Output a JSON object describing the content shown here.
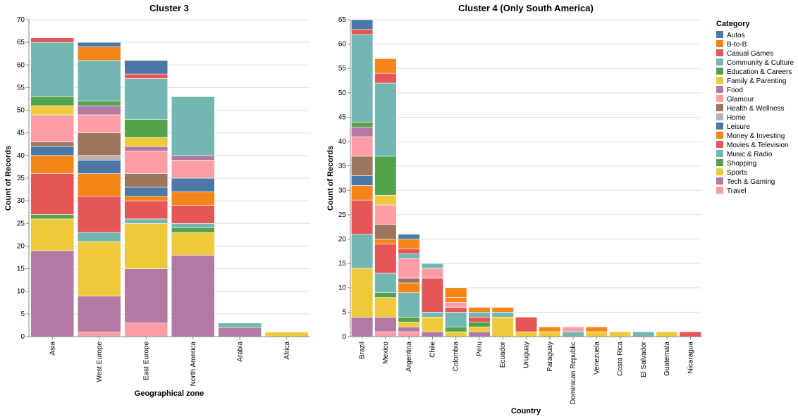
{
  "colors": {
    "Autos": "#4c78a8",
    "B-to-B": "#f58518",
    "Casual Games": "#e45756",
    "Community & Culture": "#72b7b2",
    "Education & Careers": "#54a24b",
    "Family & Parenting": "#eeca3b",
    "Food": "#b279a2",
    "Glamour": "#ff9da6",
    "Health & Wellness": "#9d755d",
    "Home": "#bab0ac",
    "Leisure": "#4c78a8",
    "Money & Investing": "#f58518",
    "Movies & Television": "#e45756",
    "Music & Radio": "#72b7b2",
    "Shopping": "#54a24b",
    "Sports": "#eeca3b",
    "Tech & Gaming": "#b279a2",
    "Travel": "#ff9da6"
  },
  "legend": {
    "title": "Category",
    "items": [
      "Autos",
      "B-to-B",
      "Casual Games",
      "Community & Culture",
      "Education & Careers",
      "Family & Parenting",
      "Food",
      "Glamour",
      "Health & Wellness",
      "Home",
      "Leisure",
      "Money & Investing",
      "Movies & Television",
      "Music & Radio",
      "Shopping",
      "Sports",
      "Tech & Gaming",
      "Travel"
    ]
  },
  "chart_data": [
    {
      "type": "bar",
      "stacked": true,
      "title": "Cluster 3",
      "xlabel": "Geographical zone",
      "ylabel": "Count of Records",
      "ylim": [
        0,
        70
      ],
      "yticks": [
        0,
        5,
        10,
        15,
        20,
        25,
        30,
        35,
        40,
        45,
        50,
        55,
        60,
        65,
        70
      ],
      "categories": [
        "Asia",
        "West Europe",
        "East Europe",
        "North America",
        "Arabia",
        "Africa"
      ],
      "stacks": [
        [
          [
            "Tech & Gaming",
            19
          ],
          [
            "Sports",
            7
          ],
          [
            "Shopping",
            1
          ],
          [
            "Movies & Television",
            9
          ],
          [
            "Money & Investing",
            4
          ],
          [
            "Leisure",
            2
          ],
          [
            "Health & Wellness",
            1
          ],
          [
            "Glamour",
            6
          ],
          [
            "Family & Parenting",
            2
          ],
          [
            "Education & Careers",
            2
          ],
          [
            "Community & Culture",
            12
          ],
          [
            "Casual Games",
            1
          ]
        ],
        [
          [
            "Travel",
            1
          ],
          [
            "Tech & Gaming",
            8
          ],
          [
            "Sports",
            12
          ],
          [
            "Music & Radio",
            2
          ],
          [
            "Movies & Television",
            8
          ],
          [
            "Money & Investing",
            5
          ],
          [
            "Leisure",
            3
          ],
          [
            "Home",
            1
          ],
          [
            "Health & Wellness",
            5
          ],
          [
            "Glamour",
            4
          ],
          [
            "Food",
            2
          ],
          [
            "Education & Careers",
            1
          ],
          [
            "Community & Culture",
            9
          ],
          [
            "B-to-B",
            3
          ],
          [
            "Autos",
            1
          ]
        ],
        [
          [
            "Travel",
            3
          ],
          [
            "Tech & Gaming",
            12
          ],
          [
            "Sports",
            10
          ],
          [
            "Music & Radio",
            1
          ],
          [
            "Movies & Television",
            4
          ],
          [
            "Money & Investing",
            1
          ],
          [
            "Leisure",
            2
          ],
          [
            "Health & Wellness",
            3
          ],
          [
            "Glamour",
            5
          ],
          [
            "Food",
            1
          ],
          [
            "Family & Parenting",
            2
          ],
          [
            "Education & Careers",
            4
          ],
          [
            "Community & Culture",
            9
          ],
          [
            "Casual Games",
            1
          ],
          [
            "Autos",
            3
          ]
        ],
        [
          [
            "Tech & Gaming",
            18
          ],
          [
            "Sports",
            5
          ],
          [
            "Shopping",
            1
          ],
          [
            "Music & Radio",
            1
          ],
          [
            "Movies & Television",
            4
          ],
          [
            "Money & Investing",
            3
          ],
          [
            "Leisure",
            3
          ],
          [
            "Glamour",
            4
          ],
          [
            "Food",
            1
          ],
          [
            "Community & Culture",
            13
          ]
        ],
        [
          [
            "Tech & Gaming",
            2
          ],
          [
            "Music & Radio",
            1
          ]
        ],
        [
          [
            "Sports",
            1
          ]
        ]
      ]
    },
    {
      "type": "bar",
      "stacked": true,
      "title": "Cluster 4 (Only South America)",
      "xlabel": "Country",
      "ylabel": "Count of Records",
      "ylim": [
        0,
        65
      ],
      "yticks": [
        0,
        5,
        10,
        15,
        20,
        25,
        30,
        35,
        40,
        45,
        50,
        55,
        60,
        65
      ],
      "categories": [
        "Brazil",
        "Mexico",
        "Argentina",
        "Chile",
        "Colombia",
        "Peru",
        "Ecuador",
        "Uruguay",
        "Paraguay",
        "Dominican Republic",
        "Venezuela",
        "Costa Rica",
        "El Salvador",
        "Guatemala",
        "Nicaragua"
      ],
      "stacks": [
        [
          [
            "Tech & Gaming",
            4
          ],
          [
            "Sports",
            10
          ],
          [
            "Music & Radio",
            7
          ],
          [
            "Movies & Television",
            7
          ],
          [
            "Money & Investing",
            3
          ],
          [
            "Leisure",
            2
          ],
          [
            "Health & Wellness",
            4
          ],
          [
            "Glamour",
            4
          ],
          [
            "Food",
            2
          ],
          [
            "Education & Careers",
            1
          ],
          [
            "Community & Culture",
            18
          ],
          [
            "Casual Games",
            1
          ],
          [
            "Autos",
            2
          ]
        ],
        [
          [
            "Travel",
            1
          ],
          [
            "Tech & Gaming",
            3
          ],
          [
            "Sports",
            4
          ],
          [
            "Shopping",
            1
          ],
          [
            "Music & Radio",
            4
          ],
          [
            "Movies & Television",
            6
          ],
          [
            "Money & Investing",
            1
          ],
          [
            "Health & Wellness",
            3
          ],
          [
            "Glamour",
            4
          ],
          [
            "Family & Parenting",
            2
          ],
          [
            "Education & Careers",
            8
          ],
          [
            "Community & Culture",
            15
          ],
          [
            "Casual Games",
            2
          ],
          [
            "B-to-B",
            3
          ]
        ],
        [
          [
            "Travel",
            1
          ],
          [
            "Tech & Gaming",
            1
          ],
          [
            "Sports",
            1
          ],
          [
            "Shopping",
            1
          ],
          [
            "Music & Radio",
            5
          ],
          [
            "Money & Investing",
            2
          ],
          [
            "Health & Wellness",
            1
          ],
          [
            "Glamour",
            4
          ],
          [
            "Community & Culture",
            1
          ],
          [
            "Casual Games",
            1
          ],
          [
            "B-to-B",
            2
          ],
          [
            "Autos",
            1
          ]
        ],
        [
          [
            "Tech & Gaming",
            1
          ],
          [
            "Sports",
            3
          ],
          [
            "Music & Radio",
            1
          ],
          [
            "Movies & Television",
            7
          ],
          [
            "Glamour",
            2
          ],
          [
            "Community & Culture",
            1
          ]
        ],
        [
          [
            "Sports",
            1
          ],
          [
            "Shopping",
            1
          ],
          [
            "Music & Radio",
            3
          ],
          [
            "Movies & Television",
            1
          ],
          [
            "Glamour",
            1
          ],
          [
            "B-to-B",
            1
          ],
          [
            "Money & Investing",
            2
          ]
        ],
        [
          [
            "Tech & Gaming",
            1
          ],
          [
            "Sports",
            1
          ],
          [
            "Shopping",
            1
          ],
          [
            "Movies & Television",
            1
          ],
          [
            "Community & Culture",
            1
          ],
          [
            "B-to-B",
            1
          ]
        ],
        [
          [
            "Sports",
            4
          ],
          [
            "Music & Radio",
            1
          ],
          [
            "B-to-B",
            1
          ]
        ],
        [
          [
            "Sports",
            1
          ],
          [
            "Casual Games",
            3
          ]
        ],
        [
          [
            "Sports",
            1
          ],
          [
            "B-to-B",
            1
          ]
        ],
        [
          [
            "Music & Radio",
            1
          ],
          [
            "Glamour",
            1
          ]
        ],
        [
          [
            "Sports",
            1
          ],
          [
            "B-to-B",
            1
          ]
        ],
        [
          [
            "Sports",
            1
          ]
        ],
        [
          [
            "Music & Radio",
            1
          ]
        ],
        [
          [
            "Sports",
            1
          ]
        ],
        [
          [
            "Casual Games",
            1
          ]
        ]
      ]
    }
  ]
}
